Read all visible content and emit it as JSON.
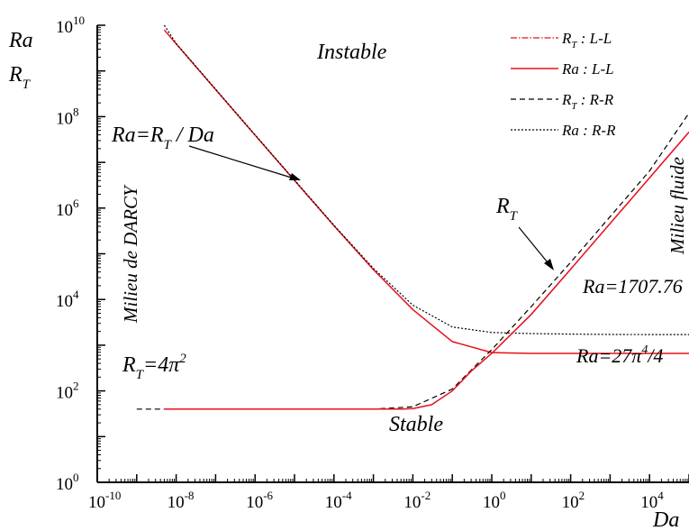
{
  "chart_data": {
    "type": "line",
    "title": "",
    "xlabel": "Da",
    "ylabel_lines": [
      "Ra",
      "R",
      "T"
    ],
    "x_scale": "log",
    "y_scale": "log",
    "xlim": [
      1e-10,
      100000.0
    ],
    "ylim": [
      1,
      10000000000.0
    ],
    "x_ticks": [
      {
        "value": 1e-10,
        "base": "10",
        "exp": "-10"
      },
      {
        "value": 1e-08,
        "base": "10",
        "exp": "-8"
      },
      {
        "value": 1e-06,
        "base": "10",
        "exp": "-6"
      },
      {
        "value": 0.0001,
        "base": "10",
        "exp": "-4"
      },
      {
        "value": 0.01,
        "base": "10",
        "exp": "-2"
      },
      {
        "value": 1,
        "base": "10",
        "exp": "0"
      },
      {
        "value": 100.0,
        "base": "10",
        "exp": "2"
      },
      {
        "value": 10000.0,
        "base": "10",
        "exp": "4"
      }
    ],
    "y_ticks": [
      {
        "value": 1,
        "base": "10",
        "exp": "0"
      },
      {
        "value": 100.0,
        "base": "10",
        "exp": "2"
      },
      {
        "value": 10000.0,
        "base": "10",
        "exp": "4"
      },
      {
        "value": 1000000.0,
        "base": "10",
        "exp": "6"
      },
      {
        "value": 100000000.0,
        "base": "10",
        "exp": "8"
      },
      {
        "value": 10000000000.0,
        "base": "10",
        "exp": "10"
      }
    ],
    "legend_position": "top-right",
    "series": [
      {
        "legend_main": "R",
        "legend_sub": "T",
        "legend_rest": " : L-L",
        "color": "#e8101a",
        "dash": "7,2,1.5,2",
        "width": 1.2,
        "x": [
          1,
          10,
          100,
          1000,
          10000,
          100000
        ],
        "y": [
          660,
          4700,
          46000,
          460000,
          4600000,
          46000000
        ]
      },
      {
        "legend_main": "Ra",
        "legend_sub": "",
        "legend_rest": " : L-L",
        "color": "#e8101a",
        "dash": "",
        "width": 1.5,
        "x": [
          5e-09,
          1e-08,
          1e-07,
          1e-06,
          1e-05,
          0.0001,
          0.001,
          0.01,
          0.1,
          1,
          10,
          100,
          1000,
          10000,
          100000
        ],
        "y": [
          7900000000.0,
          3900000000.0,
          390000000.0,
          39500000.0,
          4000000.0,
          410000.0,
          45000.0,
          6000,
          1200,
          690,
          660,
          660,
          660,
          660,
          660
        ]
      },
      {
        "legend_main": "R",
        "legend_sub": "T",
        "legend_rest": " : R-R",
        "color": "#000000",
        "dash": "6,4",
        "width": 1.2,
        "x": [
          1e-09,
          1e-08,
          1e-06,
          0.0001,
          0.001,
          0.01,
          0.1,
          1,
          10,
          100,
          1000,
          10000,
          100000
        ],
        "y": [
          40,
          40,
          40,
          40,
          40,
          45,
          110,
          800,
          7000,
          65000,
          650000,
          6500000,
          120000000.0
        ]
      },
      {
        "legend_main": "Ra",
        "legend_sub": "",
        "legend_rest": " : R-R",
        "color": "#000000",
        "dash": "2,2",
        "width": 1.2,
        "x": [
          5e-09,
          1e-08,
          1e-07,
          1e-06,
          1e-05,
          0.0001,
          0.001,
          0.01,
          0.1,
          1,
          10,
          100,
          1000,
          10000,
          100000
        ],
        "y": [
          10000000000.0,
          4000000000.0,
          400000000.0,
          40000000.0,
          4100000.0,
          420000.0,
          48000.0,
          7500,
          2500,
          1900,
          1800,
          1750,
          1720,
          1710,
          1708
        ]
      },
      {
        "legend_main": "",
        "legend_sub": "",
        "legend_rest": "",
        "color": "#e8101a",
        "dash": "",
        "width": 1.5,
        "x": [
          5e-09,
          1e-08,
          1e-06,
          0.0001,
          0.001,
          0.005,
          0.01,
          0.03,
          0.1,
          0.3,
          1,
          10,
          100,
          1000,
          10000,
          100000
        ],
        "y": [
          40,
          40,
          40,
          40,
          40,
          40,
          41,
          50,
          100,
          270,
          660,
          4700,
          46000,
          460000,
          4600000,
          46000000
        ]
      }
    ],
    "annotations": {
      "instable": "Instable",
      "stable": "Stable",
      "darcy": "Milieu de DARCY",
      "fluide": "Milieu fluide",
      "ra_rt_da": {
        "a": "Ra=R",
        "sub": "T",
        "b": " / Da"
      },
      "rt_curve": {
        "main": "R",
        "sub": "T"
      },
      "ra_1707": "Ra=1707.76",
      "ra_27pi": {
        "a": "Ra=27π",
        "sup": "4",
        "b": "/4"
      },
      "rt_4pi": {
        "a": "R",
        "sub": "T",
        "b": "=4π",
        "sup": "2"
      }
    }
  }
}
